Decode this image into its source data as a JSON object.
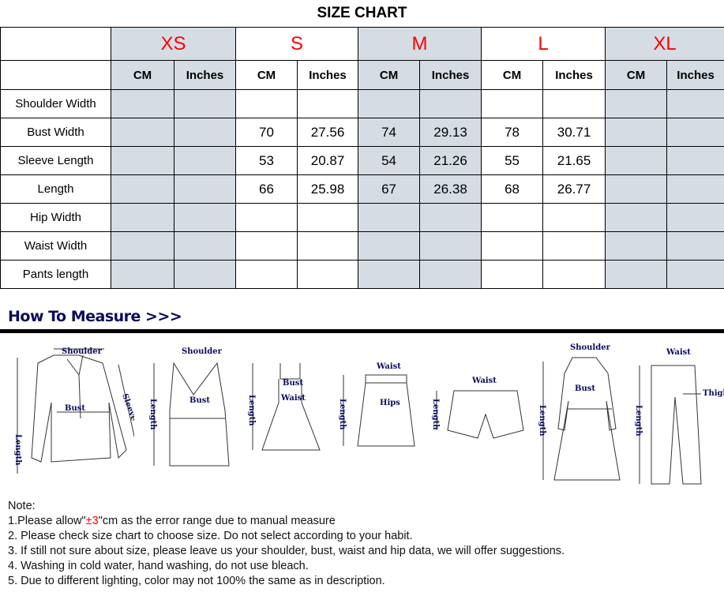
{
  "title": "SIZE CHART",
  "sizes": [
    "XS",
    "S",
    "M",
    "L",
    "XL"
  ],
  "units": [
    "CM",
    "Inches"
  ],
  "rows": [
    {
      "label": "Shoulder Width",
      "values": [
        "",
        "",
        "",
        "",
        "",
        "",
        "",
        "",
        "",
        ""
      ]
    },
    {
      "label": "Bust Width",
      "values": [
        "",
        "",
        "70",
        "27.56",
        "74",
        "29.13",
        "78",
        "30.71",
        "",
        ""
      ]
    },
    {
      "label": "Sleeve Length",
      "values": [
        "",
        "",
        "53",
        "20.87",
        "54",
        "21.26",
        "55",
        "21.65",
        "",
        ""
      ]
    },
    {
      "label": "Length",
      "values": [
        "",
        "",
        "66",
        "25.98",
        "67",
        "26.38",
        "68",
        "26.77",
        "",
        ""
      ]
    },
    {
      "label": "Hip Width",
      "values": [
        "",
        "",
        "",
        "",
        "",
        "",
        "",
        "",
        "",
        ""
      ]
    },
    {
      "label": "Waist Width",
      "values": [
        "",
        "",
        "",
        "",
        "",
        "",
        "",
        "",
        "",
        ""
      ]
    },
    {
      "label": "Pants length",
      "values": [
        "",
        "",
        "",
        "",
        "",
        "",
        "",
        "",
        "",
        ""
      ]
    }
  ],
  "how_to_measure": "How To Measure >>>",
  "figure_labels": {
    "shoulder": "Shoulder",
    "bust": "Bust",
    "sleeve": "Sleeve",
    "length": "Length",
    "waist": "Waist",
    "hips": "Hips",
    "thigh": "Thigh"
  },
  "notes": {
    "heading": "Note:",
    "n1_pre": "1.Please allow\"",
    "n1_red": "±3",
    "n1_post": "\"cm as the error range due to manual measure",
    "n2": "2. Please check size chart to choose size. Do not select according to your habit.",
    "n3": "3. If still not sure about size, please leave us your shoulder, bust, waist and hip data, we will offer suggestions.",
    "n4": "4. Washing in cold water, hand washing, do not use bleach.",
    "n5": "5. Due to different lighting, color may not 100% the same as in description."
  },
  "colors": {
    "size_label": "#ff0000",
    "shaded_column": "#d6dce4",
    "figure_text": "#0a0a5e"
  }
}
